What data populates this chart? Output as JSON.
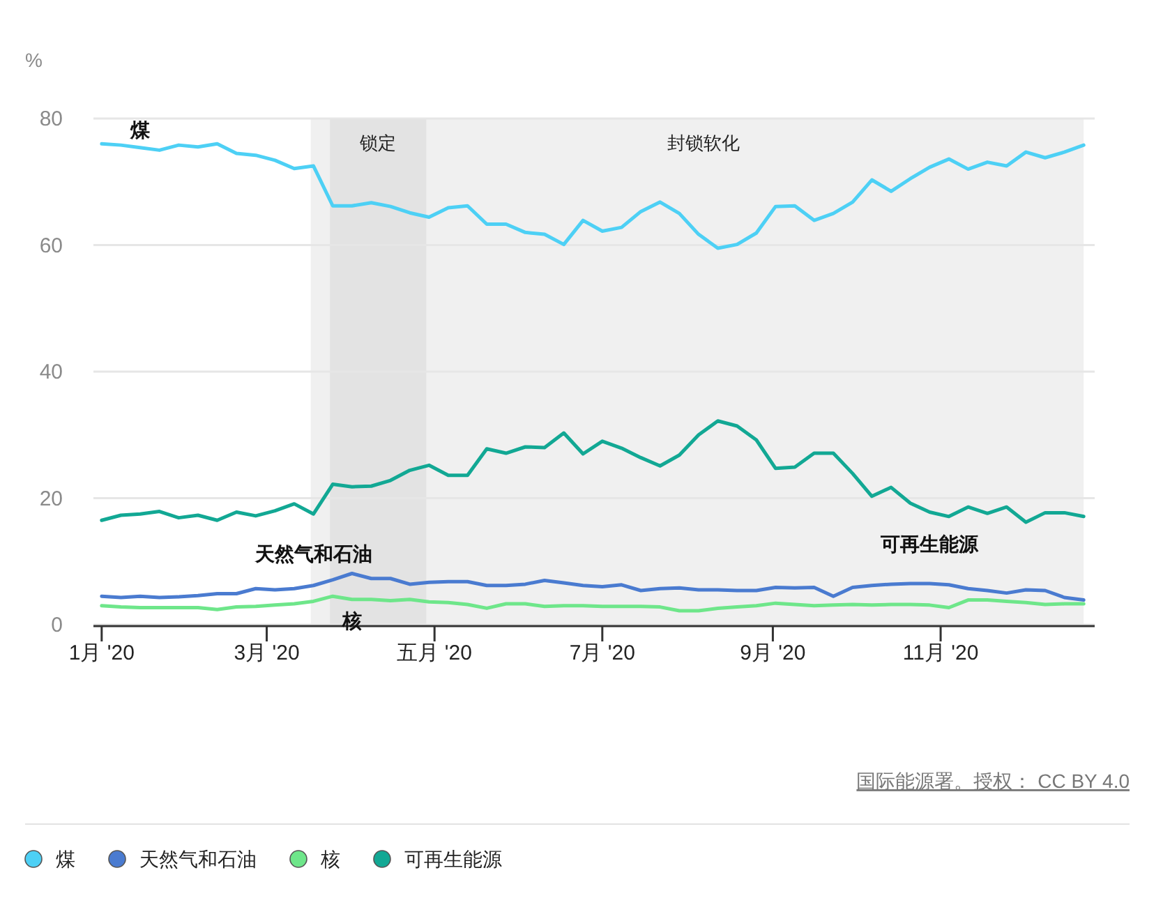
{
  "chart_data": {
    "type": "line",
    "ylabel": "%",
    "x": [
      "2020-01-01",
      "2020-01-08",
      "2020-01-15",
      "2020-01-22",
      "2020-01-29",
      "2020-02-05",
      "2020-02-12",
      "2020-02-19",
      "2020-02-26",
      "2020-03-04",
      "2020-03-11",
      "2020-03-18",
      "2020-03-25",
      "2020-04-01",
      "2020-04-08",
      "2020-04-15",
      "2020-04-22",
      "2020-04-29",
      "2020-05-06",
      "2020-05-13",
      "2020-05-20",
      "2020-05-27",
      "2020-06-03",
      "2020-06-10",
      "2020-06-17",
      "2020-06-24",
      "2020-07-01",
      "2020-07-08",
      "2020-07-15",
      "2020-07-22",
      "2020-07-29",
      "2020-08-05",
      "2020-08-12",
      "2020-08-19",
      "2020-08-26",
      "2020-09-02",
      "2020-09-09",
      "2020-09-16",
      "2020-09-23",
      "2020-09-30",
      "2020-10-07",
      "2020-10-14",
      "2020-10-21",
      "2020-10-28",
      "2020-11-04",
      "2020-11-11",
      "2020-11-18",
      "2020-11-25",
      "2020-12-02",
      "2020-12-09",
      "2020-12-16",
      "2020-12-23"
    ],
    "series": [
      {
        "name": "煤",
        "color": "#4dd0f5",
        "values": [
          76.0,
          75.8,
          75.4,
          75.0,
          75.8,
          75.5,
          76.0,
          74.5,
          74.2,
          73.4,
          72.1,
          72.5,
          66.2,
          66.2,
          66.7,
          66.1,
          65.1,
          64.4,
          65.9,
          66.2,
          63.3,
          63.3,
          62.0,
          61.7,
          60.1,
          63.9,
          62.2,
          62.8,
          65.3,
          66.8,
          65.0,
          61.7,
          59.5,
          60.1,
          61.9,
          66.1,
          66.2,
          63.9,
          65.0,
          66.8,
          70.3,
          68.5,
          70.5,
          72.3,
          73.6,
          72.0,
          73.1,
          72.5,
          74.7,
          73.8,
          74.7,
          75.8
        ]
      },
      {
        "name": "天然气和石油",
        "color": "#4a7bd0",
        "values": [
          4.5,
          4.3,
          4.5,
          4.3,
          4.4,
          4.6,
          4.9,
          4.9,
          5.7,
          5.5,
          5.7,
          6.2,
          7.1,
          8.1,
          7.3,
          7.3,
          6.4,
          6.7,
          6.8,
          6.8,
          6.2,
          6.2,
          6.4,
          7.0,
          6.6,
          6.2,
          6.0,
          6.3,
          5.4,
          5.7,
          5.8,
          5.5,
          5.5,
          5.4,
          5.4,
          5.9,
          5.8,
          5.9,
          4.5,
          5.9,
          6.2,
          6.4,
          6.5,
          6.5,
          6.3,
          5.7,
          5.4,
          5.0,
          5.5,
          5.4,
          4.3,
          3.9
        ]
      },
      {
        "name": "核",
        "color": "#6ee68a",
        "values": [
          3.0,
          2.8,
          2.7,
          2.7,
          2.7,
          2.7,
          2.4,
          2.8,
          2.9,
          3.1,
          3.3,
          3.7,
          4.5,
          4.0,
          4.0,
          3.8,
          4.0,
          3.6,
          3.5,
          3.2,
          2.6,
          3.3,
          3.3,
          2.9,
          3.0,
          3.0,
          2.9,
          2.9,
          2.9,
          2.8,
          2.2,
          2.2,
          2.6,
          2.8,
          3.0,
          3.4,
          3.2,
          3.0,
          3.1,
          3.2,
          3.1,
          3.2,
          3.2,
          3.1,
          2.7,
          3.9,
          3.9,
          3.7,
          3.5,
          3.2,
          3.3,
          3.3
        ]
      },
      {
        "name": "可再生能源",
        "color": "#12a894",
        "values": [
          16.5,
          17.3,
          17.5,
          17.9,
          16.9,
          17.3,
          16.5,
          17.8,
          17.2,
          18.0,
          19.1,
          17.5,
          22.2,
          21.8,
          21.9,
          22.8,
          24.4,
          25.2,
          23.6,
          23.6,
          27.8,
          27.1,
          28.1,
          28.0,
          30.3,
          27.0,
          29.0,
          27.9,
          26.4,
          25.1,
          26.8,
          30.0,
          32.2,
          31.4,
          29.2,
          24.7,
          24.9,
          27.1,
          27.1,
          23.9,
          20.3,
          21.7,
          19.2,
          17.8,
          17.1,
          18.6,
          17.6,
          18.6,
          16.2,
          17.7,
          17.7,
          17.1
        ]
      }
    ],
    "xlim": [
      "2019-12-29",
      "2020-12-27"
    ],
    "xticks": [
      {
        "value": "2020-01-01",
        "label": "1月 '20"
      },
      {
        "value": "2020-03-01",
        "label": "3月 '20"
      },
      {
        "value": "2020-05-01",
        "label": "五月 '20"
      },
      {
        "value": "2020-07-01",
        "label": "7月 '20"
      },
      {
        "value": "2020-09-01",
        "label": "9月 '20"
      },
      {
        "value": "2020-11-01",
        "label": "11月 '20"
      }
    ],
    "ylim": [
      0,
      80
    ],
    "yticks": [
      0,
      20,
      40,
      60,
      80
    ],
    "bands": [
      {
        "axis": "x",
        "from": "2020-03-17",
        "to": "2020-12-23",
        "label": "封锁软化",
        "color": "#f0f0f0"
      },
      {
        "axis": "x",
        "from": "2020-03-24",
        "to": "2020-04-28",
        "label": "锁定",
        "color": "#e3e3e3"
      }
    ],
    "annotations": [
      "国际能源署。授权： CC BY 4.0"
    ],
    "grid": "y",
    "legend": "bottom",
    "marker": "none",
    "line_style": "solid"
  }
}
